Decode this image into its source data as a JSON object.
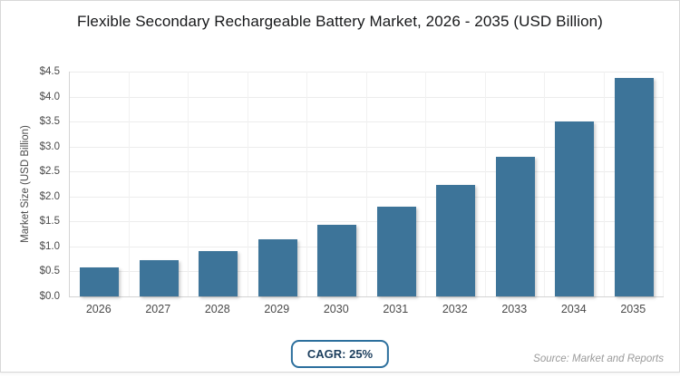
{
  "chart_data": {
    "type": "bar",
    "title": "Flexible Secondary Rechargeable Battery Market, 2026 - 2035 (USD Billion)",
    "categories": [
      "2026",
      "2027",
      "2028",
      "2029",
      "2030",
      "2031",
      "2032",
      "2033",
      "2034",
      "2035"
    ],
    "values": [
      0.58,
      0.73,
      0.91,
      1.14,
      1.43,
      1.79,
      2.24,
      2.8,
      3.5,
      4.38
    ],
    "xlabel": "",
    "ylabel": "Market Size (USD Billion)",
    "ylim": [
      0,
      4.5
    ],
    "ytick_step": 0.5,
    "ytick_labels": [
      "$0.0",
      "$0.5",
      "$1.0",
      "$1.5",
      "$2.0",
      "$2.5",
      "$3.0",
      "$3.5",
      "$4.0",
      "$4.5"
    ],
    "grid": true,
    "legend": false,
    "bar_color": "#3d7499"
  },
  "footer": {
    "cagr_label": "CAGR: 25%",
    "source": "Source: Market and Reports"
  },
  "colors": {
    "bar": "#3d7499",
    "badge_border": "#2c6f9d",
    "badge_text": "#1c3e5d",
    "grid": "#ececec",
    "axis": "#d4d4d4",
    "tick_text": "#4a4a4a",
    "source_text": "#9a9a9a",
    "card_border": "#d8d8d8"
  }
}
